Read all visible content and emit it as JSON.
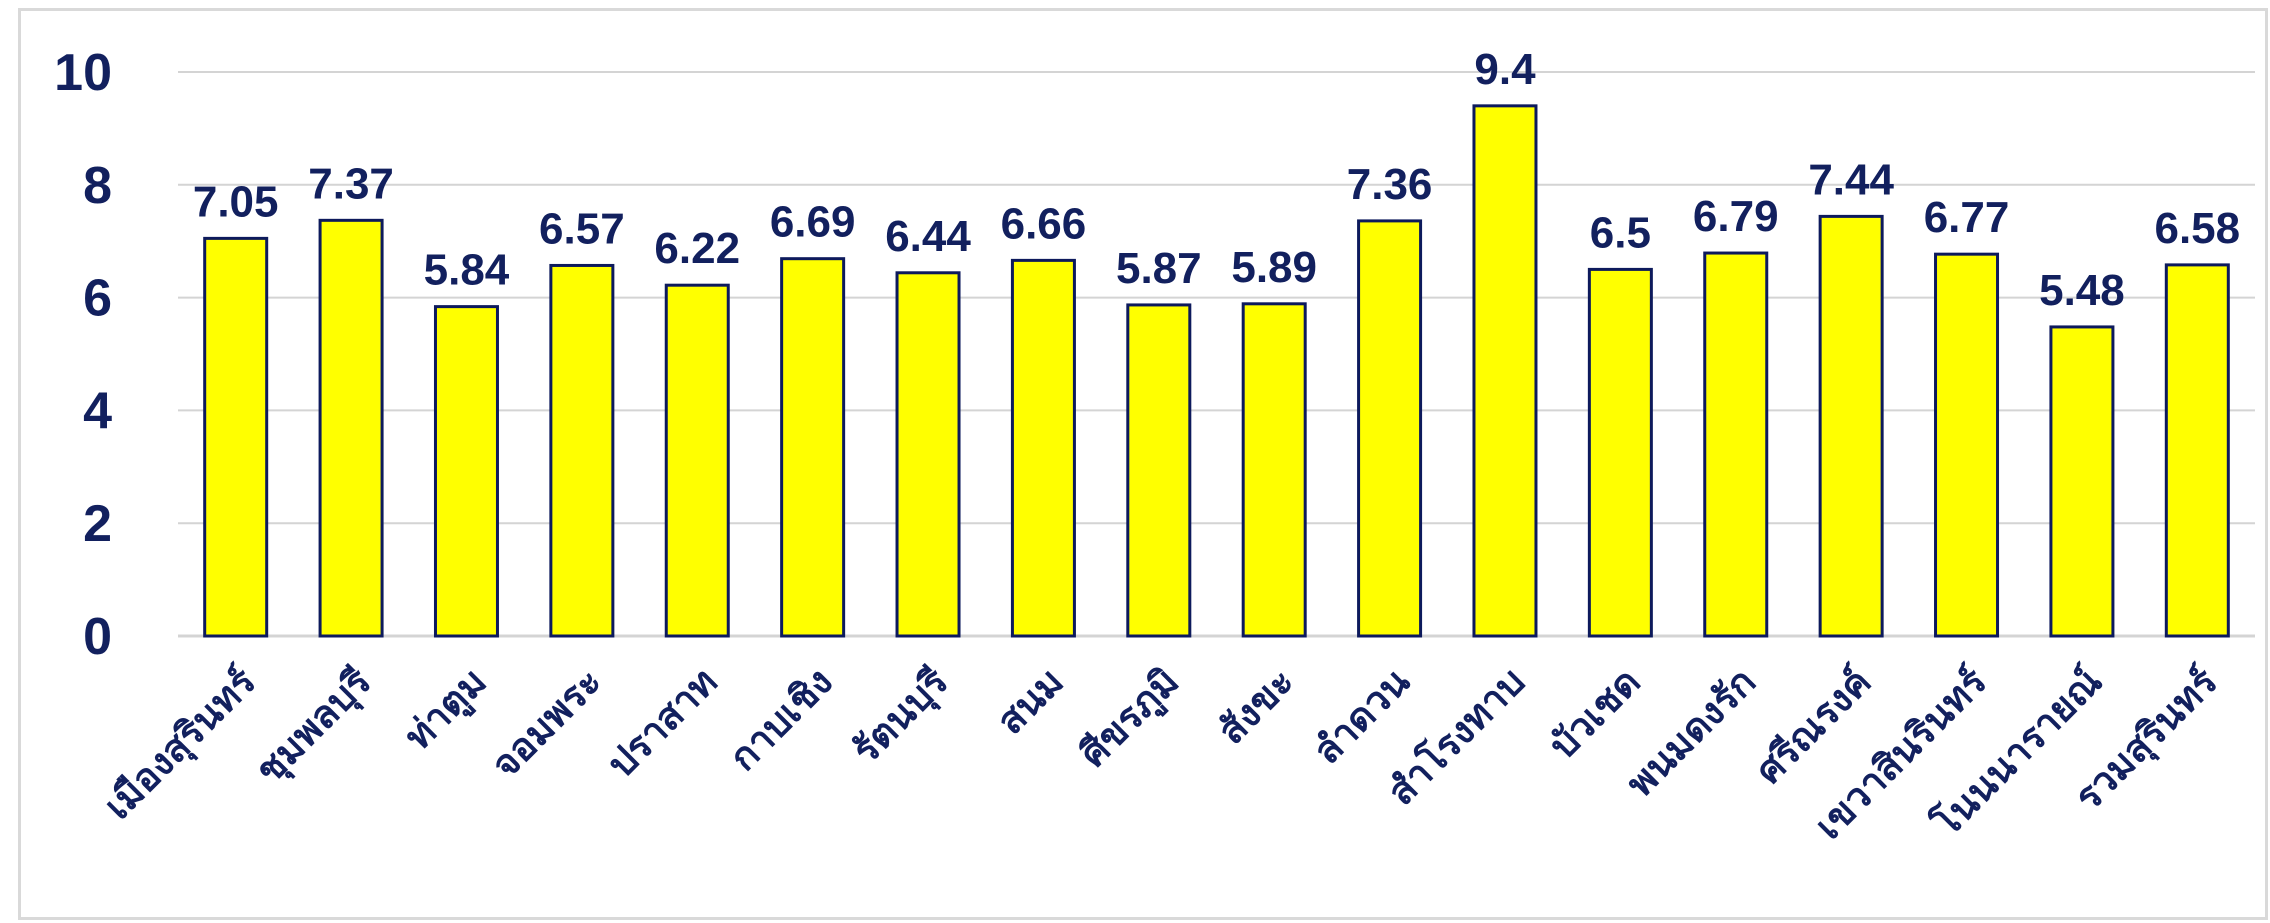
{
  "chart_data": {
    "type": "bar",
    "categories": [
      "เมืองสุรินทร์",
      "ชุมพลบุรี",
      "ท่าตูม",
      "จอมพระ",
      "ปราสาท",
      "กาบเชิง",
      "รัตนบุรี",
      "สนม",
      "ศีขรภูมิ",
      "สังขะ",
      "ลำดวน",
      "สำโรงทาบ",
      "บัวเชด",
      "พนมดงรัก",
      "ศรีณรงค์",
      "เขวาสินรินทร์",
      "โนนนารายณ์",
      "รวมสุรินทร์"
    ],
    "values": [
      7.05,
      7.37,
      5.84,
      6.57,
      6.22,
      6.69,
      6.44,
      6.66,
      5.87,
      5.89,
      7.36,
      9.4,
      6.5,
      6.79,
      7.44,
      6.77,
      5.48,
      6.58
    ],
    "value_labels": [
      "7.05",
      "7.37",
      "5.84",
      "6.57",
      "6.22",
      "6.69",
      "6.44",
      "6.66",
      "5.87",
      "5.89",
      "7.36",
      "9.4",
      "6.5",
      "6.79",
      "7.44",
      "6.77",
      "5.48",
      "6.58"
    ],
    "yticks": [
      "0",
      "2",
      "4",
      "6",
      "8",
      "10"
    ],
    "ylim": [
      0,
      10
    ],
    "grid": true,
    "legend": "none",
    "colors": {
      "bar_fill": "#ffff00",
      "bar_stroke": "#0d1a5c",
      "grid": "#d4d4d4",
      "text": "#12205e"
    }
  }
}
